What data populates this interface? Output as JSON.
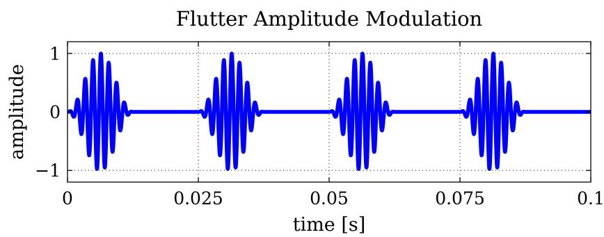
{
  "chart_data": {
    "type": "line",
    "title": "Flutter Amplitude Modulation",
    "xlabel": "time [s]",
    "ylabel": "amplitude",
    "xlim": [
      0,
      0.1
    ],
    "ylim": [
      -1.2,
      1.2
    ],
    "xticks": [
      0,
      0.025,
      0.05,
      0.075,
      0.1
    ],
    "xtick_labels": [
      "0",
      "0.025",
      "0.05",
      "0.075",
      "0.1"
    ],
    "yticks": [
      -1,
      0,
      1
    ],
    "ytick_labels": [
      "−1",
      "0",
      "1"
    ],
    "grid": true,
    "color": "#0000ff",
    "signal": {
      "period_s": 0.025,
      "burst_duration_s": 0.0125,
      "carrier_hz": 666,
      "envelope": "hann",
      "bursts_start_s": [
        0,
        0.025,
        0.05,
        0.075
      ]
    }
  }
}
